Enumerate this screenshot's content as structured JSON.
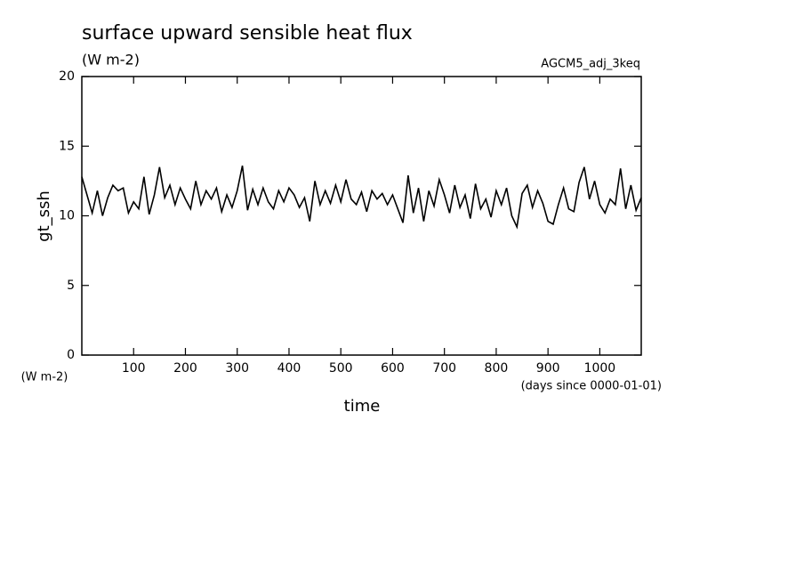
{
  "chart_data": {
    "type": "line",
    "title": "surface upward sensible heat flux",
    "subtitle": "(W m-2)",
    "annotation": "AGCM5_adj_3keq",
    "ylabel": "gt_ssh",
    "yunit": "(W m-2)",
    "xlabel": "time",
    "xunit": "(days since 0000-01-01)",
    "xlim": [
      0,
      1080
    ],
    "ylim": [
      0,
      20
    ],
    "xticks": [
      100,
      200,
      300,
      400,
      500,
      600,
      700,
      800,
      900,
      1000
    ],
    "yticks": [
      0,
      5,
      10,
      15,
      20
    ],
    "color": "#000000",
    "x": [
      0,
      10,
      20,
      30,
      40,
      50,
      60,
      70,
      80,
      90,
      100,
      110,
      120,
      130,
      140,
      150,
      160,
      170,
      180,
      190,
      200,
      210,
      220,
      230,
      240,
      250,
      260,
      270,
      280,
      290,
      300,
      310,
      320,
      330,
      340,
      350,
      360,
      370,
      380,
      390,
      400,
      410,
      420,
      430,
      440,
      450,
      460,
      470,
      480,
      490,
      500,
      510,
      520,
      530,
      540,
      550,
      560,
      570,
      580,
      590,
      600,
      610,
      620,
      630,
      640,
      650,
      660,
      670,
      680,
      690,
      700,
      710,
      720,
      730,
      740,
      750,
      760,
      770,
      780,
      790,
      800,
      810,
      820,
      830,
      840,
      850,
      860,
      870,
      880,
      890,
      900,
      910,
      920,
      930,
      940,
      950,
      960,
      970,
      980,
      990,
      1000,
      1010,
      1020,
      1030,
      1040,
      1050,
      1060,
      1070,
      1080
    ],
    "values": [
      12.8,
      11.5,
      10.2,
      11.8,
      10.0,
      11.3,
      12.2,
      11.8,
      12.0,
      10.2,
      11.0,
      10.5,
      12.8,
      10.1,
      11.5,
      13.5,
      11.3,
      12.2,
      10.8,
      12.0,
      11.2,
      10.5,
      12.5,
      10.8,
      11.8,
      11.2,
      12.0,
      10.3,
      11.5,
      10.6,
      11.8,
      13.6,
      10.4,
      11.9,
      10.8,
      12.0,
      11.0,
      10.5,
      11.8,
      11.0,
      12.0,
      11.5,
      10.6,
      11.3,
      9.6,
      12.5,
      10.8,
      11.8,
      10.9,
      12.2,
      11.0,
      12.6,
      11.2,
      10.8,
      11.7,
      10.3,
      11.8,
      11.2,
      11.6,
      10.8,
      11.5,
      10.5,
      9.5,
      12.9,
      10.2,
      12.0,
      9.6,
      11.8,
      10.7,
      12.6,
      11.5,
      10.2,
      12.2,
      10.6,
      11.5,
      9.8,
      12.3,
      10.5,
      11.2,
      9.9,
      11.8,
      10.8,
      12.0,
      10.0,
      9.2,
      11.6,
      12.2,
      10.6,
      11.8,
      10.9,
      9.6,
      9.4,
      10.8,
      12.0,
      10.5,
      10.3,
      12.4,
      13.5,
      11.2,
      12.5,
      10.8,
      10.2,
      11.2,
      10.8,
      13.4,
      10.5,
      12.2,
      10.4,
      11.3
    ]
  }
}
